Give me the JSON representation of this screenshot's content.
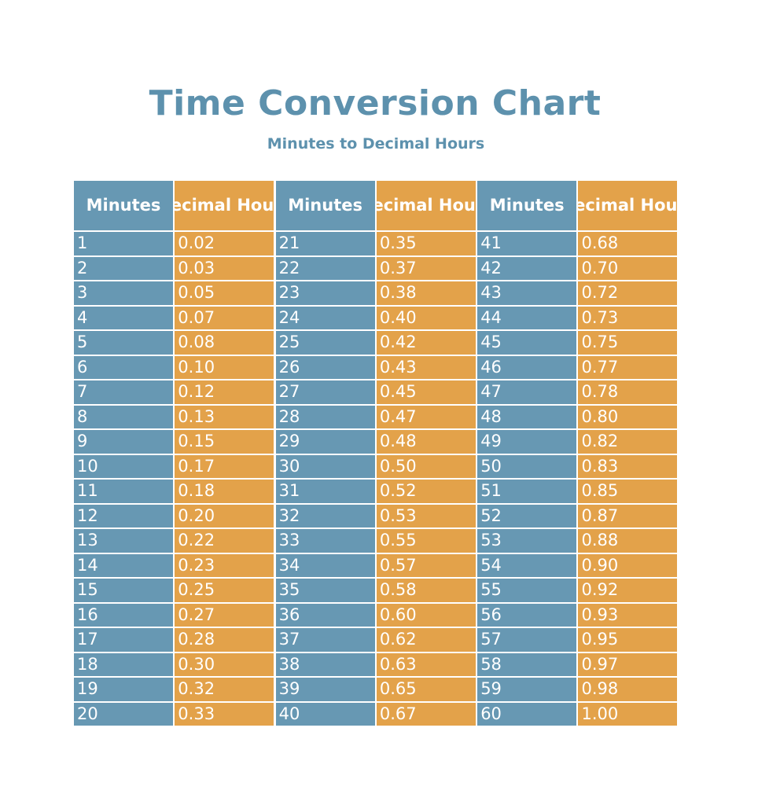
{
  "title": "Time Conversion Chart",
  "subtitle": "Minutes to Decimal Hours",
  "columns": [
    {
      "header": "Minutes",
      "color": "#6798b3"
    },
    {
      "header": "Decimal Hours",
      "color": "#e3a24a"
    },
    {
      "header": "Minutes",
      "color": "#6798b3"
    },
    {
      "header": "Decimal Hours",
      "color": "#e3a24a"
    },
    {
      "header": "Minutes",
      "color": "#6798b3"
    },
    {
      "header": "Decimal Hours",
      "color": "#e3a24a"
    }
  ],
  "rows": [
    [
      "1",
      "0.02",
      "21",
      "0.35",
      "41",
      "0.68"
    ],
    [
      "2",
      "0.03",
      "22",
      "0.37",
      "42",
      "0.70"
    ],
    [
      "3",
      "0.05",
      "23",
      "0.38",
      "43",
      "0.72"
    ],
    [
      "4",
      "0.07",
      "24",
      "0.40",
      "44",
      "0.73"
    ],
    [
      "5",
      "0.08",
      "25",
      "0.42",
      "45",
      "0.75"
    ],
    [
      "6",
      "0.10",
      "26",
      "0.43",
      "46",
      "0.77"
    ],
    [
      "7",
      "0.12",
      "27",
      "0.45",
      "47",
      "0.78"
    ],
    [
      "8",
      "0.13",
      "28",
      "0.47",
      "48",
      "0.80"
    ],
    [
      "9",
      "0.15",
      "29",
      "0.48",
      "49",
      "0.82"
    ],
    [
      "10",
      "0.17",
      "30",
      "0.50",
      "50",
      "0.83"
    ],
    [
      "11",
      "0.18",
      "31",
      "0.52",
      "51",
      "0.85"
    ],
    [
      "12",
      "0.20",
      "32",
      "0.53",
      "52",
      "0.87"
    ],
    [
      "13",
      "0.22",
      "33",
      "0.55",
      "53",
      "0.88"
    ],
    [
      "14",
      "0.23",
      "34",
      "0.57",
      "54",
      "0.90"
    ],
    [
      "15",
      "0.25",
      "35",
      "0.58",
      "55",
      "0.92"
    ],
    [
      "16",
      "0.27",
      "36",
      "0.60",
      "56",
      "0.93"
    ],
    [
      "17",
      "0.28",
      "37",
      "0.62",
      "57",
      "0.95"
    ],
    [
      "18",
      "0.30",
      "38",
      "0.63",
      "58",
      "0.97"
    ],
    [
      "19",
      "0.32",
      "39",
      "0.65",
      "59",
      "0.98"
    ],
    [
      "20",
      "0.33",
      "40",
      "0.67",
      "60",
      "1.00"
    ]
  ]
}
